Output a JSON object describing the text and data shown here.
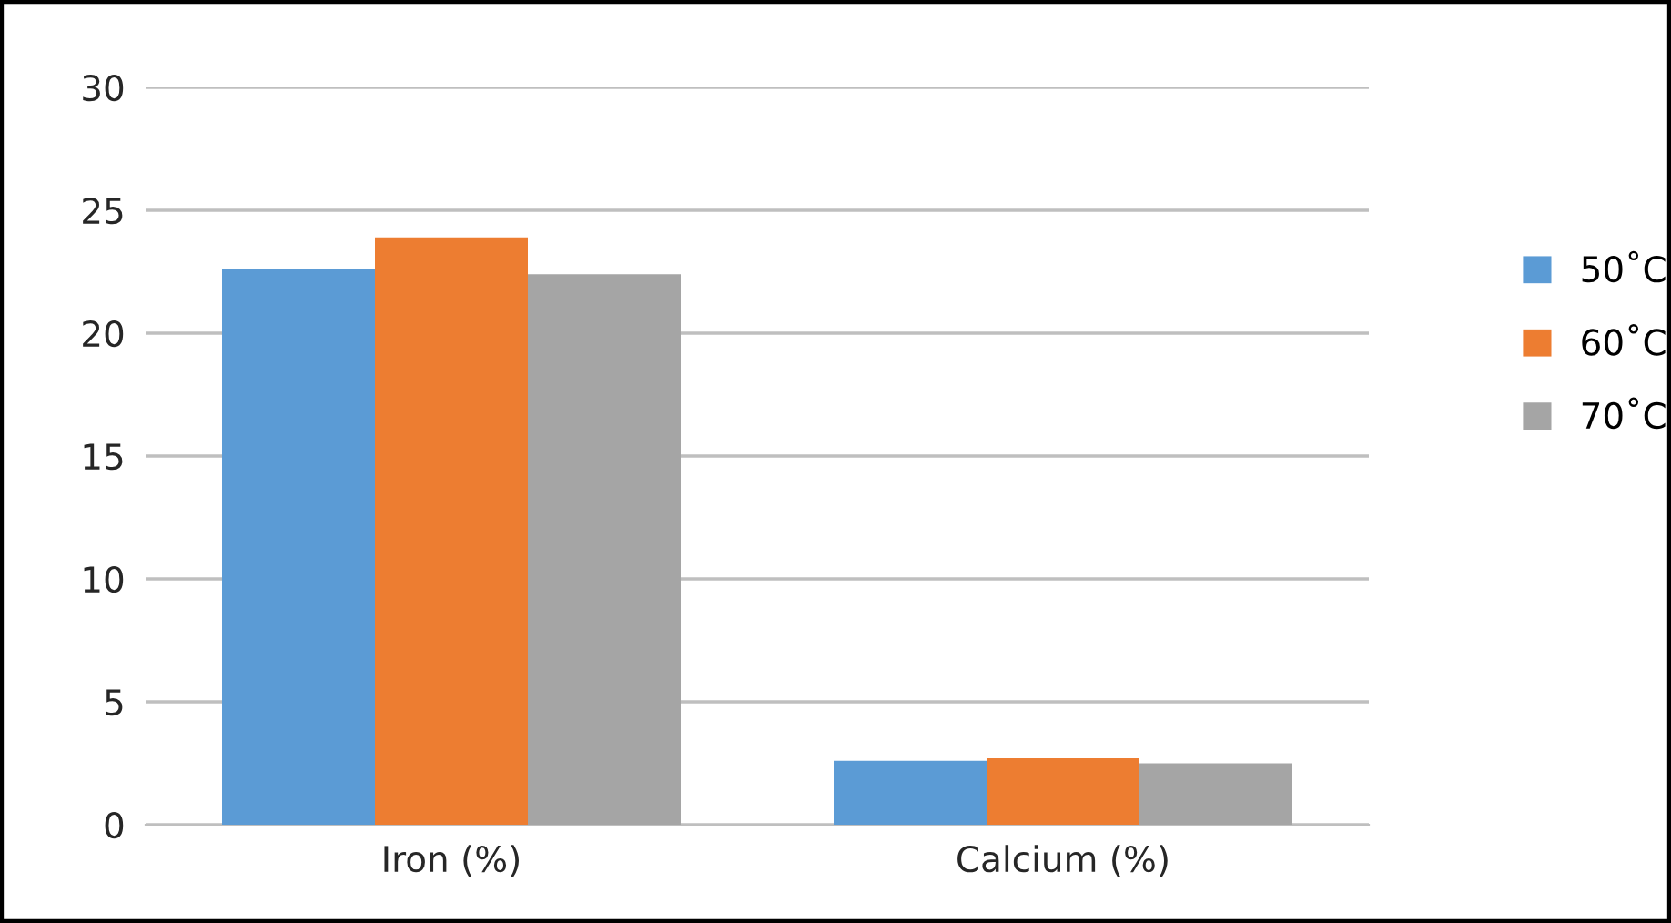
{
  "chart_data": {
    "type": "bar",
    "categories": [
      "Iron (%)",
      "Calcium (%)"
    ],
    "series": [
      {
        "name": "50˚C",
        "color": "#5b9bd5",
        "values": [
          22.6,
          2.6
        ]
      },
      {
        "name": "60˚C",
        "color": "#ed7d31",
        "values": [
          23.9,
          2.7
        ]
      },
      {
        "name": "70˚C",
        "color": "#a5a5a5",
        "values": [
          22.4,
          2.5
        ]
      }
    ],
    "ylim": [
      0,
      30
    ],
    "yticks": [
      0,
      5,
      10,
      15,
      20,
      25,
      30
    ],
    "grid": "y",
    "legend": "right"
  }
}
